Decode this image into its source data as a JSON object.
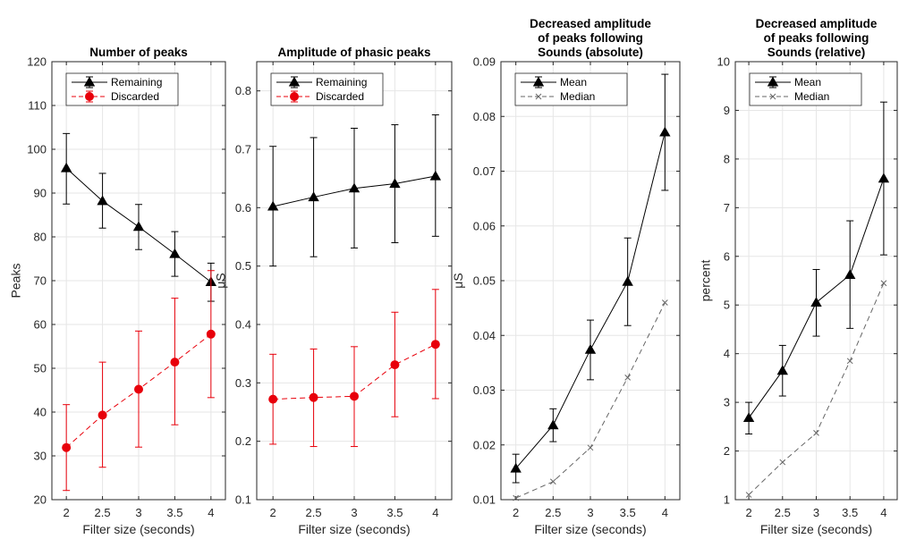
{
  "chart_data": [
    {
      "type": "line",
      "title_lines": [
        "Number of peaks"
      ],
      "xlabel": "Filter size (seconds)",
      "ylabel": "Peaks",
      "x": [
        2,
        2.5,
        3,
        3.5,
        4
      ],
      "xticks": [
        "2",
        "2.5",
        "3",
        "3.5",
        "4"
      ],
      "ylim": [
        20,
        120
      ],
      "yticks": [
        "20",
        "30",
        "40",
        "50",
        "60",
        "70",
        "80",
        "90",
        "100",
        "110",
        "120"
      ],
      "grid": true,
      "legend_position": "top-left",
      "series": [
        {
          "name": "Remaining",
          "color": "#000000",
          "marker": "triangle",
          "dash": "solid",
          "values": [
            95.7,
            88.2,
            82.3,
            76.1,
            69.7
          ],
          "err_low": [
            87.5,
            82.0,
            77.1,
            71.0,
            65.3
          ],
          "err_high": [
            103.6,
            94.5,
            87.4,
            81.2,
            74.0
          ]
        },
        {
          "name": "Discarded",
          "color": "#e8000b",
          "marker": "circle",
          "dash": "dashed",
          "values": [
            31.9,
            39.3,
            45.2,
            51.4,
            57.8
          ],
          "err_low": [
            22.1,
            27.4,
            32.0,
            37.1,
            43.3
          ],
          "err_high": [
            41.7,
            51.4,
            58.5,
            66.0,
            72.3
          ]
        }
      ]
    },
    {
      "type": "line",
      "title_lines": [
        "Amplitude of phasic peaks"
      ],
      "xlabel": "Filter size (seconds)",
      "ylabel": "μS",
      "x": [
        2,
        2.5,
        3,
        3.5,
        4
      ],
      "xticks": [
        "2",
        "2.5",
        "3",
        "3.5",
        "4"
      ],
      "ylim": [
        0.1,
        0.85
      ],
      "yticks": [
        "0.1",
        "0.2",
        "0.3",
        "0.4",
        "0.5",
        "0.6",
        "0.7",
        "0.8"
      ],
      "grid": true,
      "legend_position": "top-left",
      "series": [
        {
          "name": "Remaining",
          "color": "#000000",
          "marker": "triangle",
          "dash": "solid",
          "values": [
            0.602,
            0.618,
            0.633,
            0.641,
            0.654
          ],
          "err_low": [
            0.5,
            0.516,
            0.531,
            0.54,
            0.551
          ],
          "err_high": [
            0.705,
            0.72,
            0.736,
            0.742,
            0.759
          ]
        },
        {
          "name": "Discarded",
          "color": "#e8000b",
          "marker": "circle",
          "dash": "dashed",
          "values": [
            0.272,
            0.275,
            0.277,
            0.331,
            0.366
          ],
          "err_low": [
            0.195,
            0.191,
            0.191,
            0.242,
            0.273
          ],
          "err_high": [
            0.349,
            0.358,
            0.362,
            0.421,
            0.46
          ]
        }
      ]
    },
    {
      "type": "line",
      "title_lines": [
        "Decreased amplitude",
        "of peaks following",
        "Sounds (absolute)"
      ],
      "xlabel": "Filter size (seconds)",
      "ylabel": "μS",
      "x": [
        2,
        2.5,
        3,
        3.5,
        4
      ],
      "xticks": [
        "2",
        "2.5",
        "3",
        "3.5",
        "4"
      ],
      "ylim": [
        0.01,
        0.09
      ],
      "yticks": [
        "0.01",
        "0.02",
        "0.03",
        "0.04",
        "0.05",
        "0.06",
        "0.07",
        "0.08",
        "0.09"
      ],
      "grid": true,
      "legend_position": "top-left",
      "series": [
        {
          "name": "Mean",
          "color": "#000000",
          "marker": "triangle",
          "dash": "solid",
          "values": [
            0.0157,
            0.0236,
            0.0374,
            0.0498,
            0.0771
          ],
          "err_low": [
            0.0131,
            0.0206,
            0.0319,
            0.0418,
            0.0665
          ],
          "err_high": [
            0.0183,
            0.0266,
            0.0428,
            0.0578,
            0.0877
          ]
        },
        {
          "name": "Median",
          "color": "#666666",
          "marker": "x",
          "dash": "dashed",
          "values": [
            0.0103,
            0.0133,
            0.0195,
            0.0323,
            0.046
          ]
        }
      ]
    },
    {
      "type": "line",
      "title_lines": [
        "Decreased amplitude",
        "of peaks following",
        "Sounds (relative)"
      ],
      "xlabel": "Filter size (seconds)",
      "ylabel": "percent",
      "x": [
        2,
        2.5,
        3,
        3.5,
        4
      ],
      "xticks": [
        "2",
        "2.5",
        "3",
        "3.5",
        "4"
      ],
      "ylim": [
        1,
        10
      ],
      "yticks": [
        "1",
        "2",
        "3",
        "4",
        "5",
        "6",
        "7",
        "8",
        "9",
        "10"
      ],
      "grid": true,
      "legend_position": "top-left",
      "series": [
        {
          "name": "Mean",
          "color": "#000000",
          "marker": "triangle",
          "dash": "solid",
          "values": [
            2.68,
            3.65,
            5.05,
            5.62,
            7.6
          ],
          "err_low": [
            2.35,
            3.13,
            4.36,
            4.52,
            6.03
          ],
          "err_high": [
            3.0,
            4.17,
            5.73,
            6.73,
            9.17
          ]
        },
        {
          "name": "Median",
          "color": "#666666",
          "marker": "x",
          "dash": "dashed",
          "values": [
            1.1,
            1.77,
            2.37,
            3.85,
            5.45
          ]
        }
      ]
    }
  ]
}
